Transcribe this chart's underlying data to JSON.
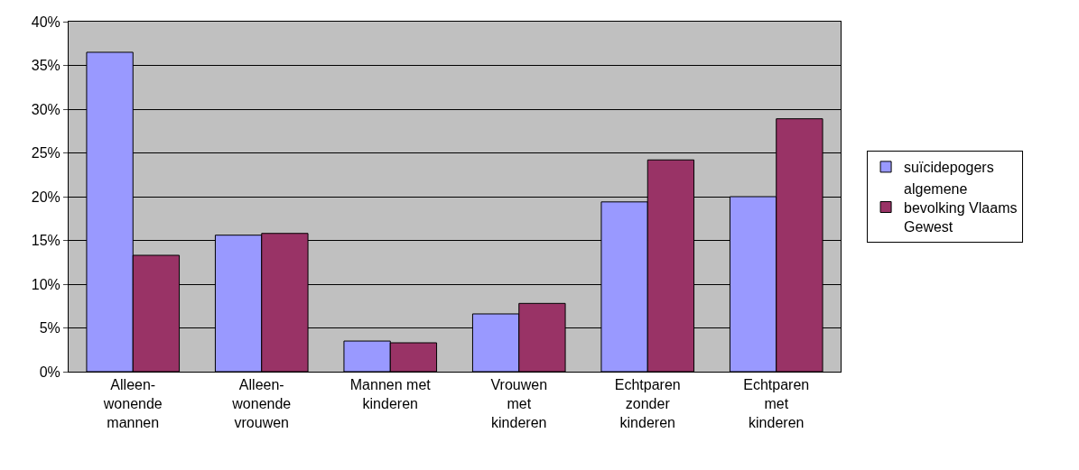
{
  "chart_data": {
    "type": "bar",
    "categories": [
      "Alleen-\nwonende\nmannen",
      "Alleen-\nwonende\nvrouwen",
      "Mannen met\nkinderen",
      "Vrouwen\nmet\nkinderen",
      "Echtparen\nzonder\nkinderen",
      "Echtparen\nmet\nkinderen"
    ],
    "series": [
      {
        "name": "suïcidepogers",
        "color": "#9999ff",
        "values": [
          36.5,
          15.6,
          3.5,
          6.6,
          19.4,
          20.0
        ]
      },
      {
        "name": "algemene\nbevolking Vlaams\nGewest",
        "color": "#993366",
        "values": [
          13.3,
          15.8,
          3.3,
          7.8,
          24.2,
          28.9
        ]
      }
    ],
    "ylim": [
      0,
      40
    ],
    "yticks": [
      {
        "value": 0,
        "label": "0%"
      },
      {
        "value": 5,
        "label": "5%"
      },
      {
        "value": 10,
        "label": "10%"
      },
      {
        "value": 15,
        "label": "15%"
      },
      {
        "value": 20,
        "label": "20%"
      },
      {
        "value": 25,
        "label": "25%"
      },
      {
        "value": 30,
        "label": "30%"
      },
      {
        "value": 35,
        "label": "35%"
      },
      {
        "value": 40,
        "label": "40%"
      }
    ],
    "grid": "y",
    "legend": "right"
  }
}
